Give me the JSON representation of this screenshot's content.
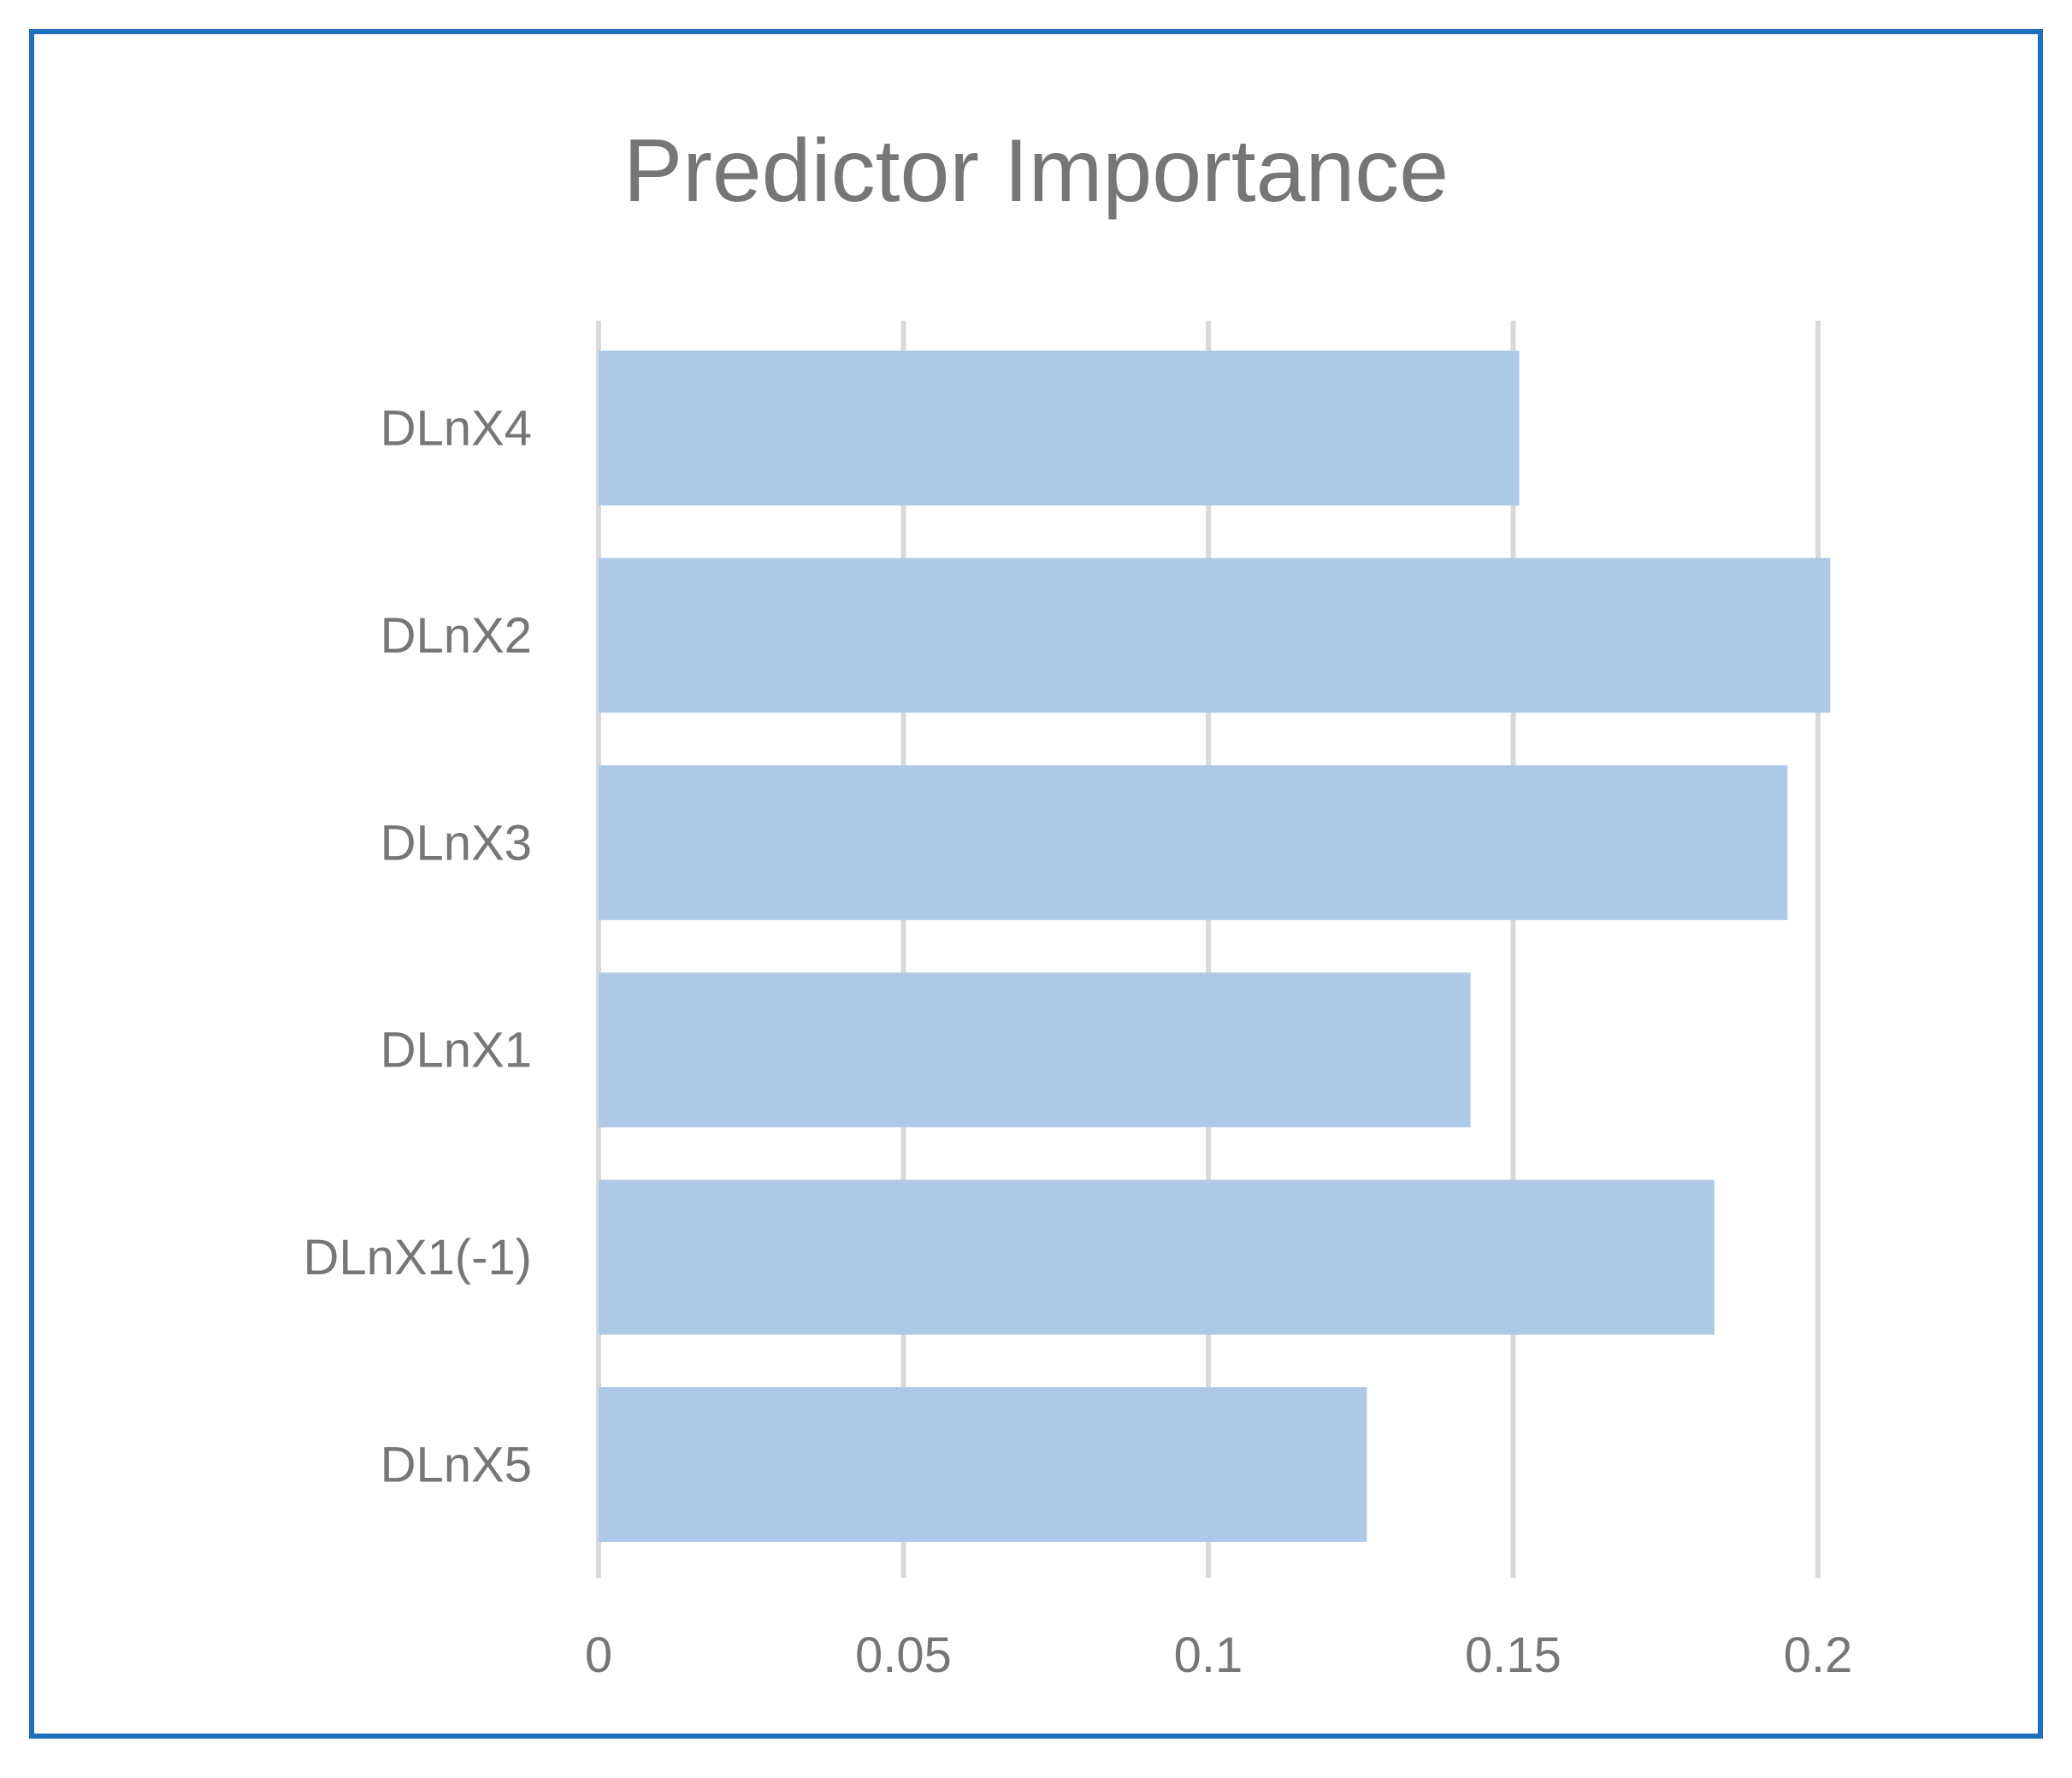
{
  "chart_data": {
    "type": "bar",
    "orientation": "horizontal",
    "title": "Predictor Importance",
    "xlabel": "",
    "ylabel": "",
    "categories": [
      "DLnX4",
      "DLnX2",
      "DLnX3",
      "DLnX1",
      "DLnX1(-1)",
      "DLnX5"
    ],
    "values": [
      0.151,
      0.202,
      0.195,
      0.143,
      0.183,
      0.126
    ],
    "xlim": [
      0,
      0.2
    ],
    "xticks": [
      "0",
      "0.05",
      "0.1",
      "0.15",
      "0.2"
    ],
    "grid": "vertical",
    "legend": "none",
    "colors": {
      "bar": "#aec8e8",
      "grid": "#d9d9d9",
      "text": "#767676",
      "frame": "#1f6fbf"
    }
  }
}
